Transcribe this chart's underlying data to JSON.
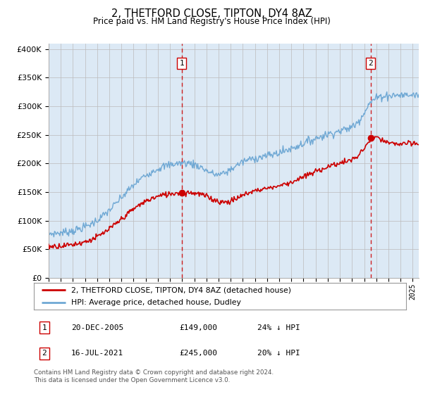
{
  "title": "2, THETFORD CLOSE, TIPTON, DY4 8AZ",
  "subtitle": "Price paid vs. HM Land Registry's House Price Index (HPI)",
  "legend_line1": "2, THETFORD CLOSE, TIPTON, DY4 8AZ (detached house)",
  "legend_line2": "HPI: Average price, detached house, Dudley",
  "footnote": "Contains HM Land Registry data © Crown copyright and database right 2024.\nThis data is licensed under the Open Government Licence v3.0.",
  "sale1_date": "20-DEC-2005",
  "sale1_price": "£149,000",
  "sale1_note": "24% ↓ HPI",
  "sale2_date": "16-JUL-2021",
  "sale2_price": "£245,000",
  "sale2_note": "20% ↓ HPI",
  "hpi_color": "#6fa8d4",
  "price_color": "#cc0000",
  "dashed_line_color": "#cc0000",
  "plot_bg_color": "#dce9f5",
  "ylim": [
    0,
    410000
  ],
  "yticks": [
    0,
    50000,
    100000,
    150000,
    200000,
    250000,
    300000,
    350000,
    400000
  ],
  "sale1_year": 2005.97,
  "sale1_value": 149000,
  "sale2_year": 2021.54,
  "sale2_value": 245000,
  "xlim_start": 1995,
  "xlim_end": 2025.5
}
